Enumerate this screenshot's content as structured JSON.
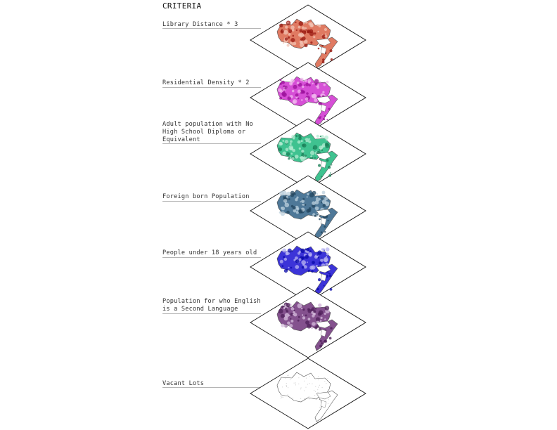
{
  "title": "CRITERIA",
  "layers": [
    {
      "label": "Library Distance * 3",
      "fill": "#e07a62",
      "light": "#f2c4b4",
      "dark": "#9a1a12"
    },
    {
      "label": "Residential Density * 2",
      "fill": "#d64fd6",
      "light": "#f0b8ee",
      "dark": "#9a0f9a"
    },
    {
      "label": "Adult population with No High School Diploma or Equivalent",
      "fill": "#3fc290",
      "light": "#b4ebd2",
      "dark": "#1b7f58"
    },
    {
      "label": "Foreign born Population",
      "fill": "#4e7898",
      "light": "#bcd0de",
      "dark": "#23465f"
    },
    {
      "label": "People under 18 years old",
      "fill": "#3c34d8",
      "light": "#b8b4f2",
      "dark": "#0a0aa8"
    },
    {
      "label": "Population for who English is a Second Language",
      "fill": "#84518e",
      "light": "#d7bddd",
      "dark": "#4d1f58"
    },
    {
      "label": "Vacant Lots",
      "fill": "#ffffff",
      "light": "#e6e6e6",
      "dark": "#9a9a9a"
    }
  ]
}
